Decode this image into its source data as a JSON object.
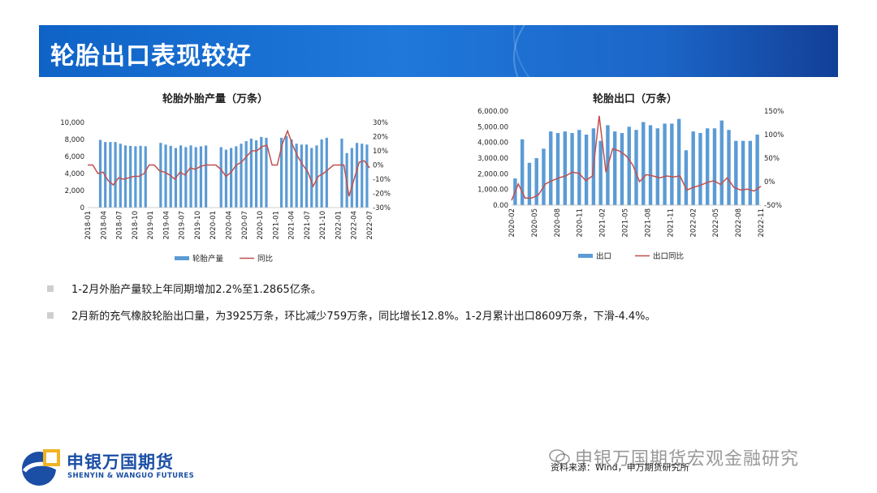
{
  "header": {
    "title": "轮胎出口表现较好"
  },
  "bullets": [
    "1-2月外胎产量较上年同期增加2.2%至1.2865亿条。",
    "2月新的充气橡胶轮胎出口量，为3925万条，环比减少759万条，同比增长12.8%。1-2月累计出口8609万条，下滑-4.4%。"
  ],
  "footer": {
    "source": "资料来源：Wind，申万期货研究所",
    "watermark": "申银万国期货宏观金融研究",
    "logo_cn": "申银万国期货",
    "logo_en": "SHENYIN & WANGUO FUTURES"
  },
  "colors": {
    "bar": "#5b9bd5",
    "line": "#c0504d",
    "title_bar": "#1f78da",
    "logo": "#1b4fa5"
  },
  "chart_data": [
    {
      "type": "bar",
      "title": "轮胎外胎产量（万条）",
      "ylim": [
        0,
        10000
      ],
      "y_ticks": [
        "0",
        "2,000",
        "4,000",
        "6,000",
        "8,000",
        "10,000"
      ],
      "y2lim": [
        -30,
        30
      ],
      "y2_ticks": [
        "-30%",
        "-20%",
        "-10%",
        "0%",
        "10%",
        "20%",
        "30%"
      ],
      "x_tick_labels": [
        "2018-01",
        "2018-04",
        "2018-07",
        "2018-10",
        "2019-01",
        "2019-04",
        "2019-07",
        "2019-10",
        "2020-01",
        "2020-04",
        "2020-07",
        "2020-10",
        "2021-01",
        "2021-04",
        "2021-07",
        "2021-10",
        "2022-01",
        "2022-04",
        "2022-07"
      ],
      "legend": [
        "轮胎产量",
        "同比"
      ],
      "bars": [
        null,
        null,
        7950,
        7700,
        7700,
        7700,
        7500,
        7300,
        7250,
        7200,
        7250,
        7200,
        null,
        null,
        7600,
        7400,
        7250,
        7000,
        7300,
        7100,
        7300,
        7100,
        7200,
        7300,
        null,
        null,
        7100,
        6800,
        7000,
        7200,
        7500,
        7800,
        8100,
        7900,
        8300,
        8200,
        null,
        null,
        8200,
        8400,
        8000,
        7500,
        7400,
        7400,
        7000,
        7300,
        8000,
        8200,
        null,
        null,
        8100,
        6400,
        7000,
        7600,
        7500,
        7400
      ],
      "yoy": [
        0,
        0,
        -6,
        -5,
        -11,
        -14,
        -9,
        -10,
        -9,
        -8,
        -8,
        -6,
        0,
        0,
        -4,
        -5,
        -7,
        -10,
        -5,
        -7,
        -2,
        -3,
        -1,
        0,
        0,
        0,
        -3,
        -8,
        -5,
        0,
        2,
        6,
        10,
        10,
        13,
        14,
        0,
        0,
        15,
        24,
        14,
        6,
        0,
        -5,
        -15,
        -8,
        -6,
        -3,
        0,
        0,
        0,
        -22,
        -10,
        2,
        3,
        -2
      ]
    },
    {
      "type": "bar",
      "title": "轮胎出口（万条）",
      "ylim": [
        0,
        6000
      ],
      "y_ticks": [
        "0.00",
        "1,000.00",
        "2,000.00",
        "3,000.00",
        "4,000.00",
        "5,000.00",
        "6,000.00"
      ],
      "y2lim": [
        -50,
        150
      ],
      "y2_ticks": [
        "-50%",
        "0%",
        "50%",
        "100%",
        "150%"
      ],
      "x_tick_labels": [
        "2020-02",
        "2020-05",
        "2020-08",
        "2020-11",
        "2021-02",
        "2021-05",
        "2021-08",
        "2021-11",
        "2022-02",
        "2022-05",
        "2022-08",
        "2022-11"
      ],
      "legend": [
        "出口",
        "出口同比"
      ],
      "bars": [
        1700,
        4200,
        2700,
        3000,
        3600,
        4700,
        4600,
        4700,
        4600,
        4800,
        4500,
        4900,
        4100,
        5100,
        4700,
        4600,
        5000,
        4800,
        5300,
        5100,
        4900,
        5200,
        5200,
        5500,
        3500,
        4700,
        4600,
        4900,
        4900,
        5400,
        4800,
        4100,
        4100,
        4100,
        4500
      ],
      "yoy": [
        -40,
        -5,
        -35,
        -35,
        -28,
        -5,
        2,
        8,
        12,
        20,
        18,
        2,
        12,
        140,
        20,
        70,
        65,
        55,
        35,
        0,
        15,
        12,
        8,
        12,
        10,
        12,
        -18,
        -12,
        -8,
        -2,
        2,
        -6,
        8,
        -12,
        -18,
        -16,
        -20,
        -10
      ]
    }
  ]
}
